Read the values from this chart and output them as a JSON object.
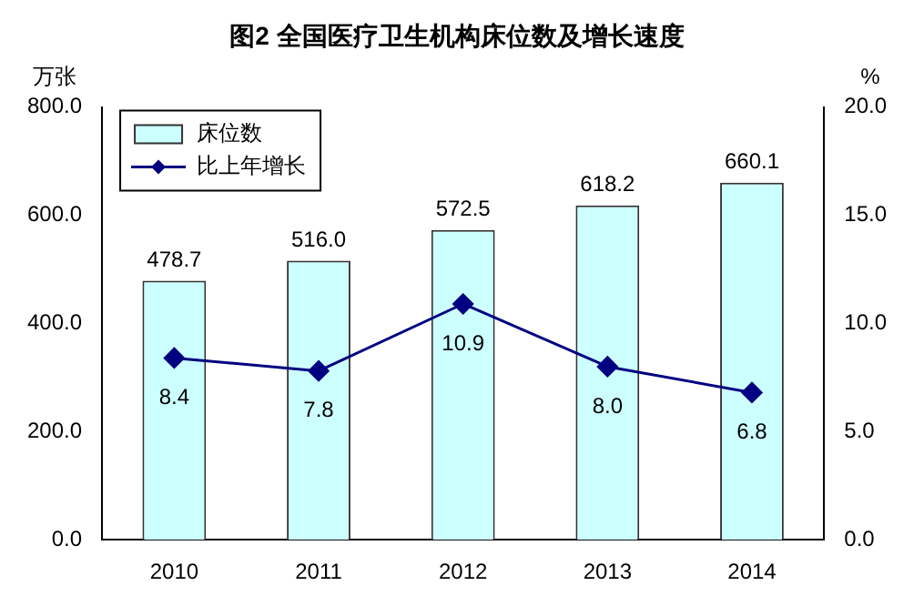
{
  "chart_data": {
    "type": "bar",
    "title": "图2 全国医疗卫生机构床位数及增长速度",
    "ylabel": "万张",
    "y2label": "%",
    "categories": [
      "2010",
      "2011",
      "2012",
      "2013",
      "2014"
    ],
    "series": [
      {
        "name": "床位数",
        "color": "#ccffff",
        "values": [
          478.7,
          516.0,
          572.5,
          618.2,
          660.1
        ],
        "value_labels": [
          "478.7",
          "516.0",
          "572.5",
          "618.2",
          "660.1"
        ]
      },
      {
        "name": "比上年增长",
        "type": "line",
        "axis": "y2",
        "color": "#000080",
        "marker": "diamond",
        "line_style": "solid",
        "values": [
          8.4,
          7.8,
          10.9,
          8.0,
          6.8
        ],
        "value_labels": [
          "8.4",
          "7.8",
          "10.9",
          "8.0",
          "6.8"
        ]
      }
    ],
    "ylim": [
      0,
      800
    ],
    "yticks": [
      {
        "value": 0,
        "label": "0.0"
      },
      {
        "value": 200,
        "label": "200.0"
      },
      {
        "value": 400,
        "label": "400.0"
      },
      {
        "value": 600,
        "label": "600.0"
      },
      {
        "value": 800,
        "label": "800.0"
      }
    ],
    "y2lim": [
      0,
      20
    ],
    "y2ticks": [
      {
        "value": 0,
        "label": "0.0"
      },
      {
        "value": 5,
        "label": "5.0"
      },
      {
        "value": 10,
        "label": "10.0"
      },
      {
        "value": 15,
        "label": "15.0"
      },
      {
        "value": 20,
        "label": "20.0"
      }
    ],
    "grid": false,
    "legend": "top left"
  }
}
